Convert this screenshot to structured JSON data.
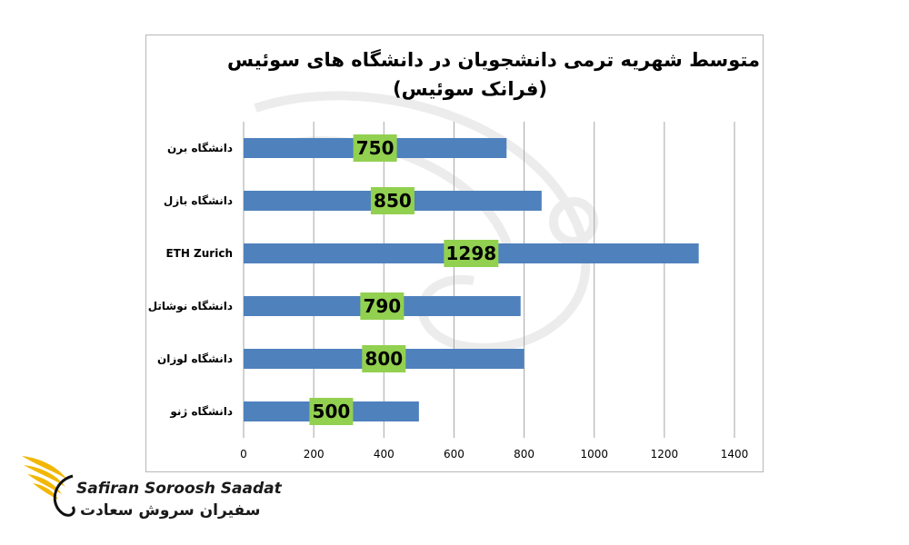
{
  "chart_data": {
    "type": "bar",
    "orientation": "horizontal",
    "title": "متوسط شهریه ترمی دانشجویان در دانشگاه های سوئیس",
    "subtitle": "(فرانک سوئیس)",
    "categories": [
      "دانشگاه برن",
      "دانشگاه بازل",
      "ETH Zurich",
      "دانشگاه نوشاتل",
      "دانشگاه لوزان",
      "دانشگاه ژنو"
    ],
    "values": [
      750,
      850,
      1298,
      790,
      800,
      500
    ],
    "data_labels": [
      "750",
      "850",
      "1298",
      "790",
      "800",
      "500"
    ],
    "xlim": [
      0,
      1400
    ],
    "x_ticks": [
      0,
      200,
      400,
      600,
      800,
      1000,
      1200,
      1400
    ],
    "xlabel": "",
    "ylabel": "",
    "grid": "vertical",
    "legend": "none",
    "bar_color": "#4f81bd",
    "label_box_color": "#92d050"
  },
  "brand": {
    "name_latin": "Safiran Soroosh Saadat",
    "name_persian": "سفیران سروش سعادت",
    "logo_color": "#f2b705",
    "logo_icon": "wing-logo-icon"
  }
}
